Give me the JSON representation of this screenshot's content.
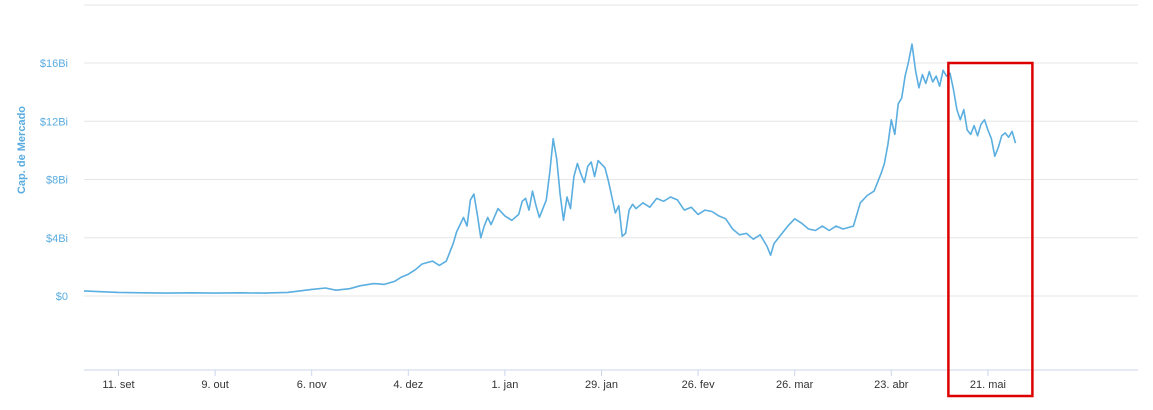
{
  "chart_data": {
    "type": "line",
    "ylabel": "Cap. de Mercado",
    "y_ticks": [
      "$0",
      "$4Bi",
      "$8Bi",
      "$12Bi",
      "$16Bi"
    ],
    "y_tick_values": [
      0,
      4,
      8,
      12,
      16
    ],
    "ylim": [
      -5,
      18
    ],
    "x_ticks": [
      "11. set",
      "9. out",
      "6. nov",
      "4. dez",
      "1. jan",
      "29. jan",
      "26. fev",
      "26. mar",
      "23. abr",
      "21. mai"
    ],
    "x_tick_values": [
      "11. set",
      "9. out",
      "6. nov",
      "4. dez",
      "1. jan",
      "29. jan",
      "26. fev",
      "26. mar",
      "23. abr",
      "21. mai"
    ],
    "grid": true,
    "highlight": {
      "x_start": "11. mai",
      "x_end": "31. mai",
      "color": "#dd0000"
    },
    "series": [
      {
        "color": "#5aaee0",
        "points": [
          [
            "1. set",
            0.35
          ],
          [
            "5. set",
            0.3
          ],
          [
            "11. set",
            0.25
          ],
          [
            "18. set",
            0.22
          ],
          [
            "25. set",
            0.2
          ],
          [
            "2. out",
            0.22
          ],
          [
            "9. out",
            0.2
          ],
          [
            "16. out",
            0.22
          ],
          [
            "23. out",
            0.2
          ],
          [
            "30. out",
            0.25
          ],
          [
            "6. nov",
            0.45
          ],
          [
            "10. nov",
            0.55
          ],
          [
            "13. nov",
            0.4
          ],
          [
            "17. nov",
            0.5
          ],
          [
            "20. nov",
            0.7
          ],
          [
            "24. nov",
            0.85
          ],
          [
            "27. nov",
            0.8
          ],
          [
            "30. nov",
            1.0
          ],
          [
            "2. dez",
            1.3
          ],
          [
            "4. dez",
            1.5
          ],
          [
            "6. dez",
            1.8
          ],
          [
            "8. dez",
            2.2
          ],
          [
            "11. dez",
            2.4
          ],
          [
            "13. dez",
            2.1
          ],
          [
            "15. dez",
            2.4
          ],
          [
            "17. dez",
            3.6
          ],
          [
            "18. dez",
            4.4
          ],
          [
            "19. dez",
            4.9
          ],
          [
            "20. dez",
            5.4
          ],
          [
            "21. dez",
            4.8
          ],
          [
            "22. dez",
            6.6
          ],
          [
            "23. dez",
            7.0
          ],
          [
            "24. dez",
            5.6
          ],
          [
            "25. dez",
            4.0
          ],
          [
            "26. dez",
            4.8
          ],
          [
            "27. dez",
            5.4
          ],
          [
            "28. dez",
            4.9
          ],
          [
            "30. dez",
            6.0
          ],
          [
            "1. jan",
            5.5
          ],
          [
            "3. jan",
            5.2
          ],
          [
            "5. jan",
            5.6
          ],
          [
            "6. jan",
            6.5
          ],
          [
            "7. jan",
            6.7
          ],
          [
            "8. jan",
            5.9
          ],
          [
            "9. jan",
            7.2
          ],
          [
            "10. jan",
            6.2
          ],
          [
            "11. jan",
            5.4
          ],
          [
            "13. jan",
            6.6
          ],
          [
            "14. jan",
            8.5
          ],
          [
            "15. jan",
            10.8
          ],
          [
            "16. jan",
            9.4
          ],
          [
            "17. jan",
            7.0
          ],
          [
            "18. jan",
            5.2
          ],
          [
            "19. jan",
            6.8
          ],
          [
            "20. jan",
            6.0
          ],
          [
            "21. jan",
            8.2
          ],
          [
            "22. jan",
            9.1
          ],
          [
            "23. jan",
            8.4
          ],
          [
            "24. jan",
            7.8
          ],
          [
            "25. jan",
            8.9
          ],
          [
            "26. jan",
            9.2
          ],
          [
            "27. jan",
            8.2
          ],
          [
            "28. jan",
            9.3
          ],
          [
            "30. jan",
            8.8
          ],
          [
            "31. jan",
            7.9
          ],
          [
            "1. fev",
            6.8
          ],
          [
            "2. fev",
            5.7
          ],
          [
            "3. fev",
            6.2
          ],
          [
            "4. fev",
            4.1
          ],
          [
            "5. fev",
            4.3
          ],
          [
            "6. fev",
            5.9
          ],
          [
            "7. fev",
            6.3
          ],
          [
            "8. fev",
            6.0
          ],
          [
            "10. fev",
            6.4
          ],
          [
            "12. fev",
            6.1
          ],
          [
            "14. fev",
            6.7
          ],
          [
            "16. fev",
            6.5
          ],
          [
            "18. fev",
            6.8
          ],
          [
            "20. fev",
            6.6
          ],
          [
            "22. fev",
            5.9
          ],
          [
            "24. fev",
            6.1
          ],
          [
            "26. fev",
            5.6
          ],
          [
            "28. fev",
            5.9
          ],
          [
            "2. mar",
            5.8
          ],
          [
            "4. mar",
            5.5
          ],
          [
            "6. mar",
            5.3
          ],
          [
            "8. mar",
            4.6
          ],
          [
            "10. mar",
            4.2
          ],
          [
            "12. mar",
            4.3
          ],
          [
            "14. mar",
            3.9
          ],
          [
            "16. mar",
            4.2
          ],
          [
            "18. mar",
            3.4
          ],
          [
            "19. mar",
            2.8
          ],
          [
            "20. mar",
            3.6
          ],
          [
            "22. mar",
            4.2
          ],
          [
            "24. mar",
            4.8
          ],
          [
            "26. mar",
            5.3
          ],
          [
            "28. mar",
            5.0
          ],
          [
            "30. mar",
            4.6
          ],
          [
            "1. abr",
            4.5
          ],
          [
            "3. abr",
            4.8
          ],
          [
            "5. abr",
            4.5
          ],
          [
            "7. abr",
            4.8
          ],
          [
            "9. abr",
            4.6
          ],
          [
            "12. abr",
            4.8
          ],
          [
            "14. abr",
            6.4
          ],
          [
            "16. abr",
            6.9
          ],
          [
            "18. abr",
            7.2
          ],
          [
            "20. abr",
            8.4
          ],
          [
            "21. abr",
            9.1
          ],
          [
            "22. abr",
            10.4
          ],
          [
            "23. abr",
            12.1
          ],
          [
            "24. abr",
            11.1
          ],
          [
            "25. abr",
            13.2
          ],
          [
            "26. abr",
            13.6
          ],
          [
            "27. abr",
            15.1
          ],
          [
            "28. abr",
            16.1
          ],
          [
            "29. abr",
            17.3
          ],
          [
            "30. abr",
            15.5
          ],
          [
            "1. mai",
            14.3
          ],
          [
            "2. mai",
            15.2
          ],
          [
            "3. mai",
            14.6
          ],
          [
            "4. mai",
            15.4
          ],
          [
            "5. mai",
            14.7
          ],
          [
            "6. mai",
            15.1
          ],
          [
            "7. mai",
            14.4
          ],
          [
            "8. mai",
            15.5
          ],
          [
            "9. mai",
            15.1
          ],
          [
            "10. mai",
            15.3
          ],
          [
            "11. mai",
            14.2
          ],
          [
            "12. mai",
            12.8
          ],
          [
            "13. mai",
            12.1
          ],
          [
            "14. mai",
            12.8
          ],
          [
            "15. mai",
            11.4
          ],
          [
            "16. mai",
            11.1
          ],
          [
            "17. mai",
            11.7
          ],
          [
            "18. mai",
            11.0
          ],
          [
            "19. mai",
            11.8
          ],
          [
            "20. mai",
            12.1
          ],
          [
            "21. mai",
            11.4
          ],
          [
            "22. mai",
            10.8
          ],
          [
            "23. mai",
            9.6
          ],
          [
            "24. mai",
            10.2
          ],
          [
            "25. mai",
            11.0
          ],
          [
            "26. mai",
            11.2
          ],
          [
            "27. mai",
            10.9
          ],
          [
            "28. mai",
            11.3
          ],
          [
            "29. mai",
            10.5
          ]
        ]
      }
    ]
  }
}
